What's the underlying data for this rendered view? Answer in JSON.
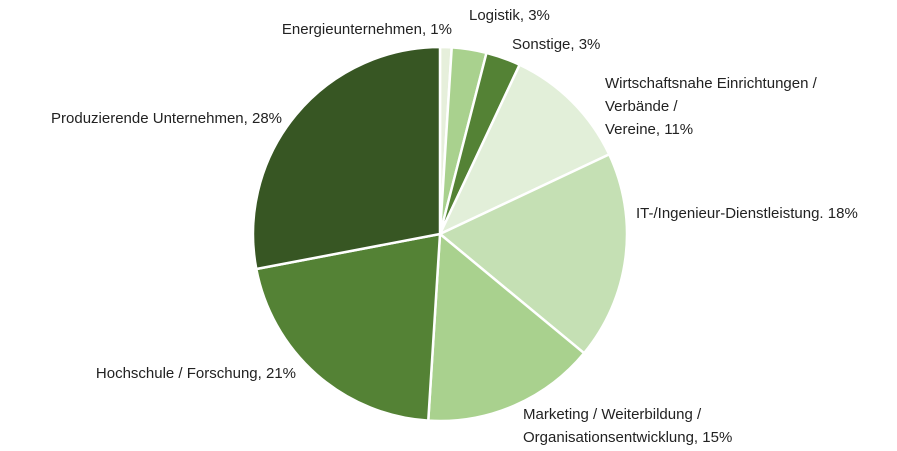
{
  "chart_data": {
    "type": "pie",
    "value_labels": [
      [
        "Energieunternehmen, 1%"
      ],
      [
        "Logistik, 3%"
      ],
      [
        "Sonstige, 3%"
      ],
      [
        "Wirtschaftsnahe Einrichtungen /",
        "Verbände /",
        "Vereine, 11%"
      ],
      [
        "IT-/Ingenieur-Dienstleistung. 18%"
      ],
      [
        "Marketing / Weiterbildung /",
        "Organisationsentwicklung, 15%"
      ],
      [
        "Hochschule / Forschung, 21%"
      ],
      [
        "Produzierende Unternehmen, 28%"
      ]
    ],
    "values": [
      1,
      3,
      3,
      11,
      18,
      15,
      21,
      28
    ],
    "colors": [
      "#e6efdb",
      "#a9d18e",
      "#548235",
      "#e2efd9",
      "#c5e0b4",
      "#a9d18e",
      "#548235",
      "#375623"
    ]
  }
}
